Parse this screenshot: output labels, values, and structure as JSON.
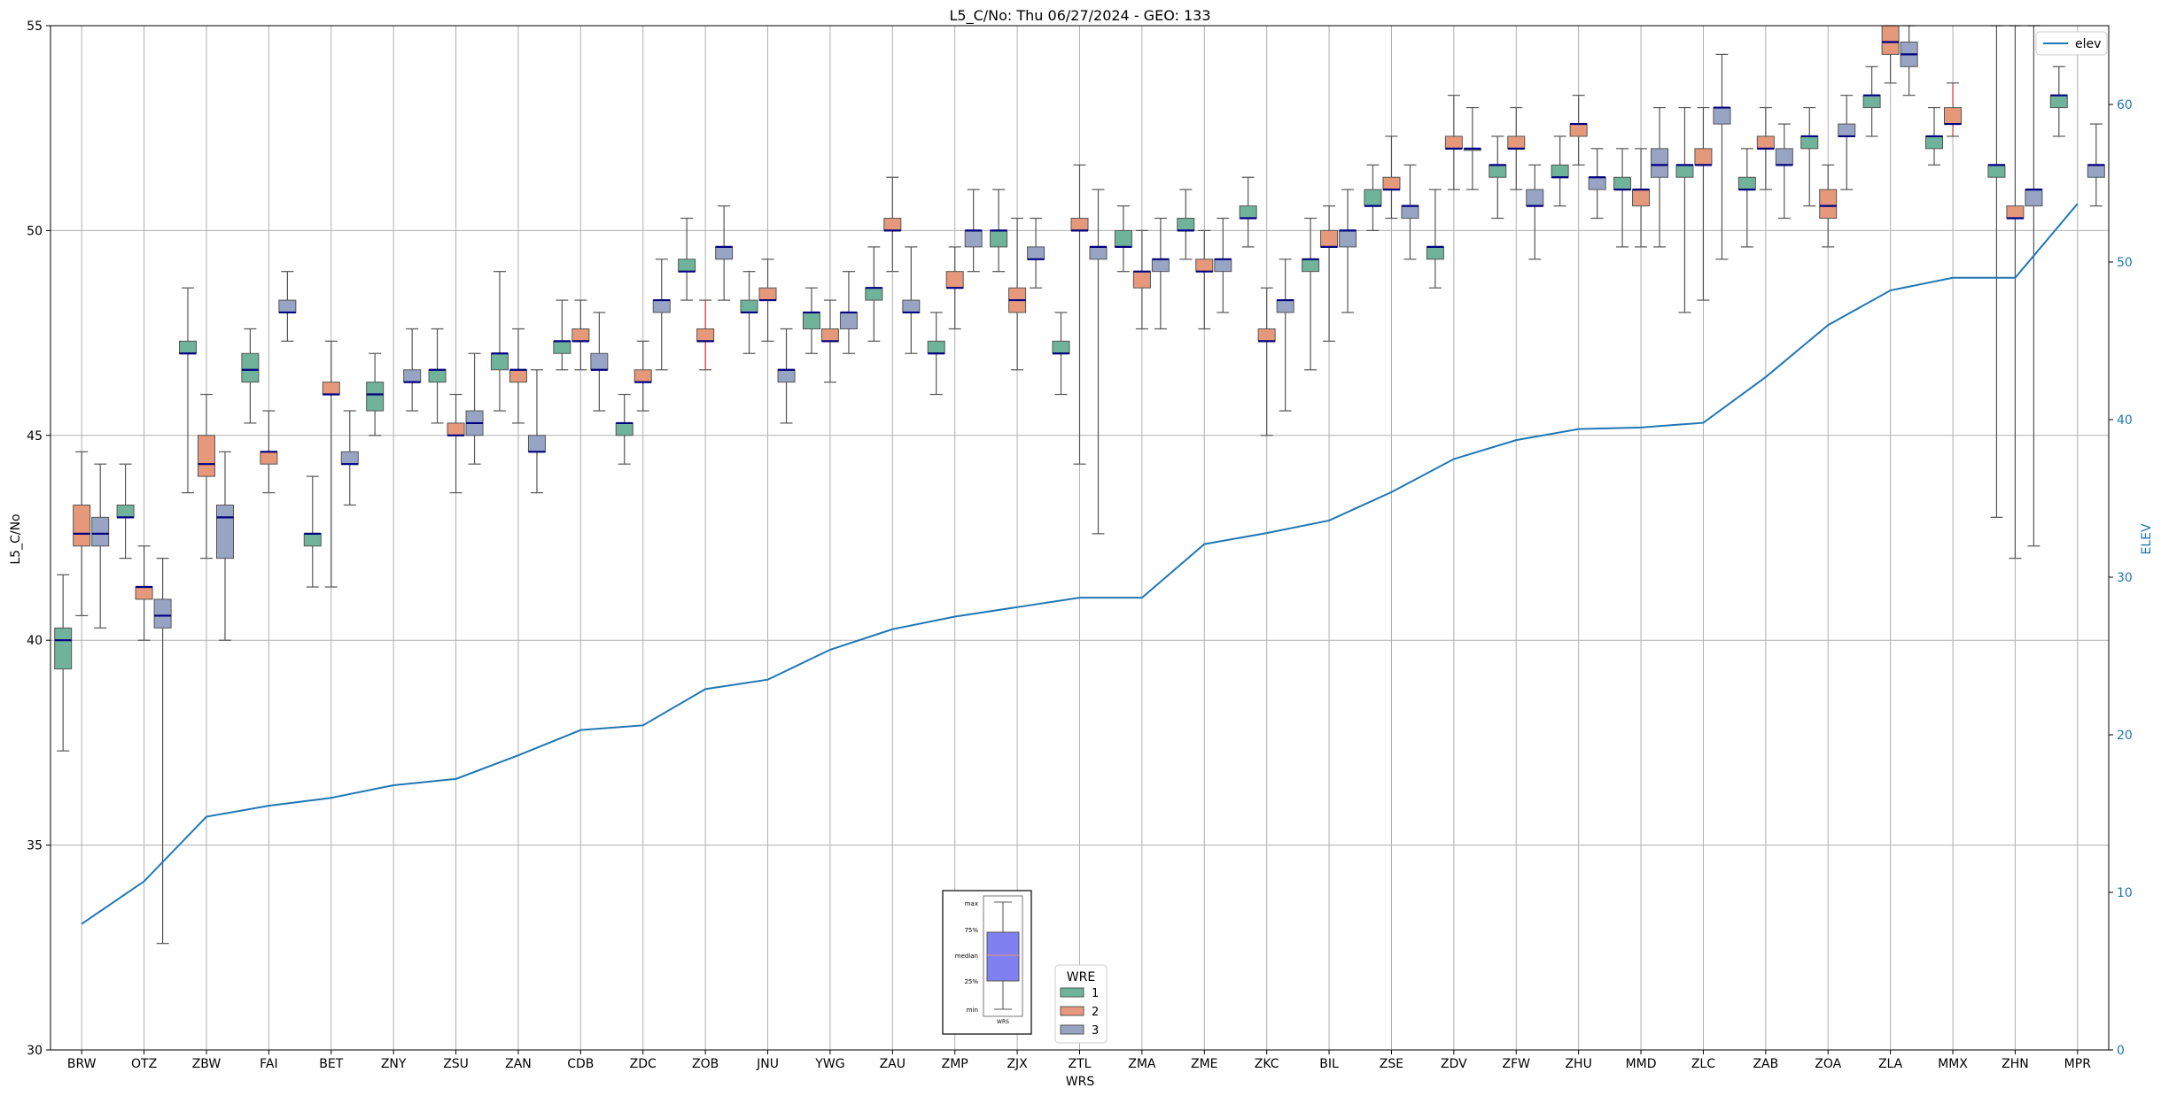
{
  "chart_data": {
    "type": "box",
    "title": "L5_C/No: Thu 06/27/2024 - GEO: 133",
    "xlabel": "WRS",
    "ylabel": "L5_C/No",
    "y2label": "ELEV",
    "ylim": [
      30,
      55
    ],
    "y2lim": [
      0,
      65
    ],
    "yticks": [
      30,
      35,
      40,
      45,
      50,
      55
    ],
    "y2ticks": [
      0,
      10,
      20,
      30,
      40,
      50,
      60
    ],
    "grid": true,
    "categories": [
      "BRW",
      "OTZ",
      "ZBW",
      "FAI",
      "BET",
      "ZNY",
      "ZSU",
      "ZAN",
      "CDB",
      "ZDC",
      "ZOB",
      "JNU",
      "YWG",
      "ZAU",
      "ZMP",
      "ZJX",
      "ZTL",
      "ZMA",
      "ZME",
      "ZKC",
      "BIL",
      "ZSE",
      "ZDV",
      "ZFW",
      "ZHU",
      "MMD",
      "ZLC",
      "ZAB",
      "ZOA",
      "ZLA",
      "MMX",
      "ZHN",
      "MPR"
    ],
    "legend": {
      "title": "WRE",
      "position": "lower-center",
      "entries": [
        "1",
        "2",
        "3"
      ]
    },
    "elev_legend": {
      "label": "elev",
      "position": "top-right"
    },
    "colors": {
      "wre1": "#6fb39b",
      "wre2": "#e6997a",
      "wre3": "#98a4c4",
      "median": "#000080",
      "elev": "#1f77b4",
      "whisker": "#555555",
      "whisker_alt": "#e03030"
    },
    "series": [
      {
        "name": "1",
        "boxes": [
          {
            "cat": "BRW",
            "min": 37.3,
            "q1": 39.3,
            "med": 40.0,
            "q3": 40.3,
            "max": 41.6
          },
          {
            "cat": "OTZ",
            "min": 42.0,
            "q1": 43.0,
            "med": 43.0,
            "q3": 43.3,
            "max": 44.3
          },
          {
            "cat": "ZBW",
            "min": 43.6,
            "q1": 47.0,
            "med": 47.0,
            "q3": 47.3,
            "max": 48.6
          },
          {
            "cat": "FAI",
            "min": 45.3,
            "q1": 46.3,
            "med": 46.6,
            "q3": 47.0,
            "max": 47.6
          },
          {
            "cat": "BET",
            "min": 41.3,
            "q1": 42.3,
            "med": 42.6,
            "q3": 42.6,
            "max": 44.0
          },
          {
            "cat": "ZNY",
            "min": 45.0,
            "q1": 45.6,
            "med": 46.0,
            "q3": 46.3,
            "max": 47.0
          },
          {
            "cat": "ZSU",
            "min": 45.3,
            "q1": 46.3,
            "med": 46.6,
            "q3": 46.6,
            "max": 47.6
          },
          {
            "cat": "ZAN",
            "min": 45.6,
            "q1": 46.6,
            "med": 47.0,
            "q3": 47.0,
            "max": 49.0
          },
          {
            "cat": "CDB",
            "min": 46.6,
            "q1": 47.0,
            "med": 47.3,
            "q3": 47.3,
            "max": 48.3
          },
          {
            "cat": "ZDC",
            "min": 44.3,
            "q1": 45.0,
            "med": 45.3,
            "q3": 45.3,
            "max": 46.0
          },
          {
            "cat": "ZOB",
            "min": 48.3,
            "q1": 49.0,
            "med": 49.0,
            "q3": 49.3,
            "max": 50.3
          },
          {
            "cat": "JNU",
            "min": 47.0,
            "q1": 48.0,
            "med": 48.0,
            "q3": 48.3,
            "max": 49.0
          },
          {
            "cat": "YWG",
            "min": 47.0,
            "q1": 47.6,
            "med": 48.0,
            "q3": 48.0,
            "max": 48.6
          },
          {
            "cat": "ZAU",
            "min": 47.3,
            "q1": 48.3,
            "med": 48.6,
            "q3": 48.6,
            "max": 49.6
          },
          {
            "cat": "ZMP",
            "min": 46.0,
            "q1": 47.0,
            "med": 47.0,
            "q3": 47.3,
            "max": 48.0
          },
          {
            "cat": "ZJX",
            "min": 49.0,
            "q1": 49.6,
            "med": 50.0,
            "q3": 50.0,
            "max": 51.0
          },
          {
            "cat": "ZTL",
            "min": 46.0,
            "q1": 47.0,
            "med": 47.0,
            "q3": 47.3,
            "max": 48.0
          },
          {
            "cat": "ZMA",
            "min": 49.0,
            "q1": 49.6,
            "med": 49.6,
            "q3": 50.0,
            "max": 50.6
          },
          {
            "cat": "ZME",
            "min": 49.3,
            "q1": 50.0,
            "med": 50.0,
            "q3": 50.3,
            "max": 51.0
          },
          {
            "cat": "ZKC",
            "min": 49.6,
            "q1": 50.3,
            "med": 50.3,
            "q3": 50.6,
            "max": 51.3
          },
          {
            "cat": "BIL",
            "min": 46.6,
            "q1": 49.0,
            "med": 49.3,
            "q3": 49.3,
            "max": 50.3
          },
          {
            "cat": "ZSE",
            "min": 50.0,
            "q1": 50.6,
            "med": 50.6,
            "q3": 51.0,
            "max": 51.6
          },
          {
            "cat": "ZDV",
            "min": 48.6,
            "q1": 49.3,
            "med": 49.6,
            "q3": 49.6,
            "max": 51.0
          },
          {
            "cat": "ZFW",
            "min": 50.3,
            "q1": 51.3,
            "med": 51.6,
            "q3": 51.6,
            "max": 52.3
          },
          {
            "cat": "ZHU",
            "min": 50.6,
            "q1": 51.3,
            "med": 51.3,
            "q3": 51.6,
            "max": 52.3
          },
          {
            "cat": "MMD",
            "min": 49.6,
            "q1": 51.0,
            "med": 51.0,
            "q3": 51.3,
            "max": 52.0
          },
          {
            "cat": "ZLC",
            "min": 48.0,
            "q1": 51.3,
            "med": 51.6,
            "q3": 51.6,
            "max": 53.0
          },
          {
            "cat": "ZAB",
            "min": 49.6,
            "q1": 51.0,
            "med": 51.0,
            "q3": 51.3,
            "max": 52.0
          },
          {
            "cat": "ZOA",
            "min": 50.6,
            "q1": 52.0,
            "med": 52.3,
            "q3": 52.3,
            "max": 53.0
          },
          {
            "cat": "ZLA",
            "min": 52.3,
            "q1": 53.0,
            "med": 53.3,
            "q3": 53.3,
            "max": 54.0
          },
          {
            "cat": "MMX",
            "min": 51.6,
            "q1": 52.0,
            "med": 52.3,
            "q3": 52.3,
            "max": 53.0
          },
          {
            "cat": "ZHN",
            "min": 43.0,
            "q1": 51.3,
            "med": 51.6,
            "q3": 51.6,
            "max": 55.0
          },
          {
            "cat": "MPR",
            "min": 52.3,
            "q1": 53.0,
            "med": 53.3,
            "q3": 53.3,
            "max": 54.0
          }
        ]
      },
      {
        "name": "2",
        "boxes": [
          {
            "cat": "BRW",
            "min": 40.6,
            "q1": 42.3,
            "med": 42.6,
            "q3": 43.3,
            "max": 44.6
          },
          {
            "cat": "OTZ",
            "min": 40.0,
            "q1": 41.0,
            "med": 41.3,
            "q3": 41.3,
            "max": 42.3
          },
          {
            "cat": "ZBW",
            "min": 42.0,
            "q1": 44.0,
            "med": 44.3,
            "q3": 45.0,
            "max": 46.0
          },
          {
            "cat": "FAI",
            "min": 43.6,
            "q1": 44.3,
            "med": 44.6,
            "q3": 44.6,
            "max": 45.6
          },
          {
            "cat": "BET",
            "min": 41.3,
            "q1": 46.0,
            "med": 46.0,
            "q3": 46.3,
            "max": 47.3
          },
          {
            "cat": "ZSU",
            "min": 43.6,
            "q1": 45.0,
            "med": 45.0,
            "q3": 45.3,
            "max": 46.0
          },
          {
            "cat": "ZAN",
            "min": 45.3,
            "q1": 46.3,
            "med": 46.6,
            "q3": 46.6,
            "max": 47.6
          },
          {
            "cat": "CDB",
            "min": 46.6,
            "q1": 47.3,
            "med": 47.3,
            "q3": 47.6,
            "max": 48.3
          },
          {
            "cat": "ZDC",
            "min": 45.6,
            "q1": 46.3,
            "med": 46.3,
            "q3": 46.6,
            "max": 47.3
          },
          {
            "cat": "ZOB",
            "min": 46.6,
            "q1": 47.3,
            "med": 47.3,
            "q3": 47.6,
            "max": 48.3,
            "whisker": "alt"
          },
          {
            "cat": "JNU",
            "min": 47.3,
            "q1": 48.3,
            "med": 48.3,
            "q3": 48.6,
            "max": 49.3
          },
          {
            "cat": "YWG",
            "min": 46.3,
            "q1": 47.3,
            "med": 47.3,
            "q3": 47.6,
            "max": 48.3
          },
          {
            "cat": "ZAU",
            "min": 49.0,
            "q1": 50.0,
            "med": 50.0,
            "q3": 50.3,
            "max": 51.3
          },
          {
            "cat": "ZMP",
            "min": 47.6,
            "q1": 48.6,
            "med": 48.6,
            "q3": 49.0,
            "max": 49.6
          },
          {
            "cat": "ZJX",
            "min": 46.6,
            "q1": 48.0,
            "med": 48.3,
            "q3": 48.6,
            "max": 50.3
          },
          {
            "cat": "ZTL",
            "min": 44.3,
            "q1": 50.0,
            "med": 50.0,
            "q3": 50.3,
            "max": 51.6
          },
          {
            "cat": "ZMA",
            "min": 47.6,
            "q1": 48.6,
            "med": 49.0,
            "q3": 49.0,
            "max": 50.0
          },
          {
            "cat": "ZME",
            "min": 47.6,
            "q1": 49.0,
            "med": 49.0,
            "q3": 49.3,
            "max": 50.0
          },
          {
            "cat": "ZKC",
            "min": 45.0,
            "q1": 47.3,
            "med": 47.3,
            "q3": 47.6,
            "max": 48.6
          },
          {
            "cat": "BIL",
            "min": 47.3,
            "q1": 49.6,
            "med": 49.6,
            "q3": 50.0,
            "max": 50.6
          },
          {
            "cat": "ZSE",
            "min": 50.3,
            "q1": 51.0,
            "med": 51.0,
            "q3": 51.3,
            "max": 52.3
          },
          {
            "cat": "ZDV",
            "min": 51.0,
            "q1": 52.0,
            "med": 52.0,
            "q3": 52.3,
            "max": 53.3
          },
          {
            "cat": "ZFW",
            "min": 51.0,
            "q1": 52.0,
            "med": 52.0,
            "q3": 52.3,
            "max": 53.0
          },
          {
            "cat": "ZHU",
            "min": 51.6,
            "q1": 52.3,
            "med": 52.6,
            "q3": 52.6,
            "max": 53.3
          },
          {
            "cat": "MMD",
            "min": 49.6,
            "q1": 50.6,
            "med": 51.0,
            "q3": 51.0,
            "max": 52.0
          },
          {
            "cat": "ZLC",
            "min": 48.3,
            "q1": 51.6,
            "med": 51.6,
            "q3": 52.0,
            "max": 53.0
          },
          {
            "cat": "ZAB",
            "min": 51.0,
            "q1": 52.0,
            "med": 52.0,
            "q3": 52.3,
            "max": 53.0
          },
          {
            "cat": "ZOA",
            "min": 49.6,
            "q1": 50.3,
            "med": 50.6,
            "q3": 51.0,
            "max": 51.6
          },
          {
            "cat": "ZLA",
            "min": 53.6,
            "q1": 54.3,
            "med": 54.6,
            "q3": 55.0,
            "max": 55.0
          },
          {
            "cat": "MMX",
            "min": 52.3,
            "q1": 52.6,
            "med": 52.6,
            "q3": 53.0,
            "max": 53.6,
            "whisker": "alt"
          },
          {
            "cat": "ZHN",
            "min": 42.0,
            "q1": 50.3,
            "med": 50.3,
            "q3": 50.6,
            "max": 55.0
          }
        ]
      },
      {
        "name": "3",
        "boxes": [
          {
            "cat": "BRW",
            "min": 40.3,
            "q1": 42.3,
            "med": 42.6,
            "q3": 43.0,
            "max": 44.3
          },
          {
            "cat": "OTZ",
            "min": 32.6,
            "q1": 40.3,
            "med": 40.6,
            "q3": 41.0,
            "max": 42.0
          },
          {
            "cat": "ZBW",
            "min": 40.0,
            "q1": 42.0,
            "med": 43.0,
            "q3": 43.3,
            "max": 44.6
          },
          {
            "cat": "FAI",
            "min": 47.3,
            "q1": 48.0,
            "med": 48.0,
            "q3": 48.3,
            "max": 49.0
          },
          {
            "cat": "BET",
            "min": 43.3,
            "q1": 44.3,
            "med": 44.3,
            "q3": 44.6,
            "max": 45.6
          },
          {
            "cat": "ZNY",
            "min": 45.6,
            "q1": 46.3,
            "med": 46.3,
            "q3": 46.6,
            "max": 47.6
          },
          {
            "cat": "ZSU",
            "min": 44.3,
            "q1": 45.0,
            "med": 45.3,
            "q3": 45.6,
            "max": 47.0
          },
          {
            "cat": "ZAN",
            "min": 43.6,
            "q1": 44.6,
            "med": 44.6,
            "q3": 45.0,
            "max": 46.6
          },
          {
            "cat": "CDB",
            "min": 45.6,
            "q1": 46.6,
            "med": 46.6,
            "q3": 47.0,
            "max": 48.0
          },
          {
            "cat": "ZDC",
            "min": 46.6,
            "q1": 48.0,
            "med": 48.3,
            "q3": 48.3,
            "max": 49.3
          },
          {
            "cat": "ZOB",
            "min": 48.3,
            "q1": 49.3,
            "med": 49.6,
            "q3": 49.6,
            "max": 50.6
          },
          {
            "cat": "JNU",
            "min": 45.3,
            "q1": 46.3,
            "med": 46.6,
            "q3": 46.6,
            "max": 47.6
          },
          {
            "cat": "YWG",
            "min": 47.0,
            "q1": 47.6,
            "med": 48.0,
            "q3": 48.0,
            "max": 49.0
          },
          {
            "cat": "ZAU",
            "min": 47.0,
            "q1": 48.0,
            "med": 48.0,
            "q3": 48.3,
            "max": 49.6
          },
          {
            "cat": "ZMP",
            "min": 49.0,
            "q1": 49.6,
            "med": 50.0,
            "q3": 50.0,
            "max": 51.0
          },
          {
            "cat": "ZJX",
            "min": 48.6,
            "q1": 49.3,
            "med": 49.3,
            "q3": 49.6,
            "max": 50.3
          },
          {
            "cat": "ZTL",
            "min": 42.6,
            "q1": 49.3,
            "med": 49.6,
            "q3": 49.6,
            "max": 51.0
          },
          {
            "cat": "ZMA",
            "min": 47.6,
            "q1": 49.0,
            "med": 49.3,
            "q3": 49.3,
            "max": 50.3
          },
          {
            "cat": "ZME",
            "min": 48.0,
            "q1": 49.0,
            "med": 49.3,
            "q3": 49.3,
            "max": 50.3
          },
          {
            "cat": "ZKC",
            "min": 45.6,
            "q1": 48.0,
            "med": 48.3,
            "q3": 48.3,
            "max": 49.3
          },
          {
            "cat": "BIL",
            "min": 48.0,
            "q1": 49.6,
            "med": 50.0,
            "q3": 50.0,
            "max": 51.0
          },
          {
            "cat": "ZSE",
            "min": 49.3,
            "q1": 50.3,
            "med": 50.6,
            "q3": 50.6,
            "max": 51.6
          },
          {
            "cat": "ZDV",
            "min": 51.0,
            "q1": 52.0,
            "med": 52.0,
            "q3": 52.0,
            "max": 53.0
          },
          {
            "cat": "ZFW",
            "min": 49.3,
            "q1": 50.6,
            "med": 50.6,
            "q3": 51.0,
            "max": 51.6
          },
          {
            "cat": "ZHU",
            "min": 50.3,
            "q1": 51.0,
            "med": 51.3,
            "q3": 51.3,
            "max": 52.0
          },
          {
            "cat": "MMD",
            "min": 49.6,
            "q1": 51.3,
            "med": 51.6,
            "q3": 52.0,
            "max": 53.0
          },
          {
            "cat": "ZLC",
            "min": 49.3,
            "q1": 52.6,
            "med": 53.0,
            "q3": 53.0,
            "max": 54.3
          },
          {
            "cat": "ZAB",
            "min": 50.3,
            "q1": 51.6,
            "med": 51.6,
            "q3": 52.0,
            "max": 52.6
          },
          {
            "cat": "ZOA",
            "min": 51.0,
            "q1": 52.3,
            "med": 52.3,
            "q3": 52.6,
            "max": 53.3
          },
          {
            "cat": "ZLA",
            "min": 53.3,
            "q1": 54.0,
            "med": 54.3,
            "q3": 54.6,
            "max": 55.0
          },
          {
            "cat": "ZHN",
            "min": 42.3,
            "q1": 50.6,
            "med": 51.0,
            "q3": 51.0,
            "max": 55.0
          },
          {
            "cat": "MPR",
            "min": 50.6,
            "q1": 51.3,
            "med": 51.6,
            "q3": 51.6,
            "max": 52.6
          }
        ]
      }
    ],
    "elev": [
      8.0,
      10.7,
      14.8,
      15.5,
      16.0,
      16.8,
      17.2,
      18.7,
      20.3,
      20.6,
      22.9,
      23.5,
      25.4,
      26.7,
      27.5,
      28.1,
      28.7,
      28.7,
      32.1,
      32.8,
      33.6,
      35.4,
      37.5,
      38.7,
      39.4,
      39.5,
      39.8,
      42.7,
      46.0,
      48.2,
      49.0,
      49.0,
      53.7
    ]
  },
  "inset": {
    "labels": [
      "max",
      "75%",
      "median",
      "25%",
      "min"
    ],
    "xlabel": "WRS"
  }
}
